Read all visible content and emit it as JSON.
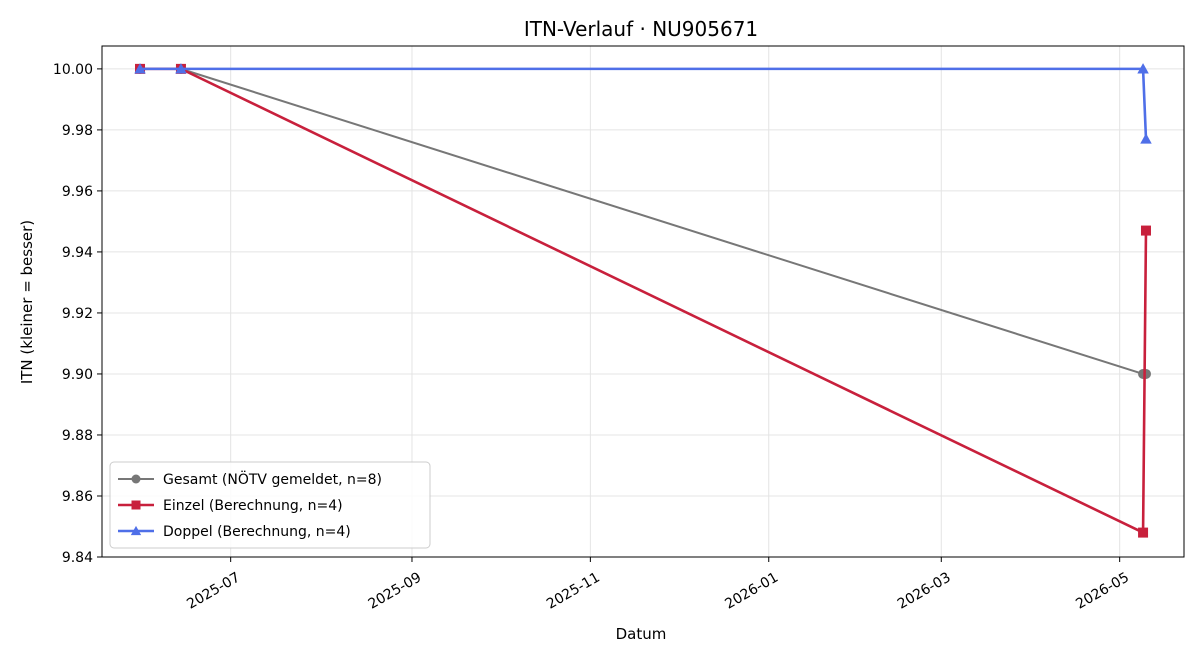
{
  "chart_data": {
    "type": "line",
    "title": "ITN-Verlauf · NU905671",
    "xlabel": "Datum",
    "ylabel": "ITN  (kleiner = besser)",
    "xlim": [
      "2025-05-18",
      "2026-05-23"
    ],
    "ylim": [
      9.84,
      10.0075
    ],
    "x_ticks": [
      "2025-07-01",
      "2025-09-01",
      "2025-11-01",
      "2026-01-01",
      "2026-03-01",
      "2026-05-01"
    ],
    "x_tick_labels": [
      "2025-07",
      "2025-09",
      "2025-11",
      "2026-01",
      "2026-03",
      "2026-05"
    ],
    "y_ticks": [
      9.84,
      9.86,
      9.88,
      9.9,
      9.92,
      9.94,
      9.96,
      9.98,
      10.0
    ],
    "y_tick_labels": [
      "9.84",
      "9.86",
      "9.88",
      "9.90",
      "9.92",
      "9.94",
      "9.96",
      "9.98",
      "10.00"
    ],
    "grid": true,
    "legend_position": "lower-left",
    "series": [
      {
        "name": "Gesamt (NÖTV gemeldet, n=8)",
        "color": "#777777",
        "marker": "circle",
        "points": [
          {
            "x": "2025-05-31",
            "y": 10.0
          },
          {
            "x": "2025-06-14",
            "y": 10.0
          },
          {
            "x": "2026-05-09",
            "y": 9.9
          },
          {
            "x": "2026-05-10",
            "y": 9.9
          }
        ]
      },
      {
        "name": "Einzel (Berechnung, n=4)",
        "color": "#c8203c",
        "marker": "square",
        "points": [
          {
            "x": "2025-05-31",
            "y": 10.0
          },
          {
            "x": "2025-06-14",
            "y": 10.0
          },
          {
            "x": "2026-05-09",
            "y": 9.848
          },
          {
            "x": "2026-05-10",
            "y": 9.947
          }
        ]
      },
      {
        "name": "Doppel (Berechnung, n=4)",
        "color": "#4f6fe8",
        "marker": "triangle",
        "points": [
          {
            "x": "2025-05-31",
            "y": 10.0
          },
          {
            "x": "2025-06-14",
            "y": 10.0
          },
          {
            "x": "2026-05-09",
            "y": 10.0
          },
          {
            "x": "2026-05-10",
            "y": 9.977
          }
        ]
      }
    ]
  }
}
